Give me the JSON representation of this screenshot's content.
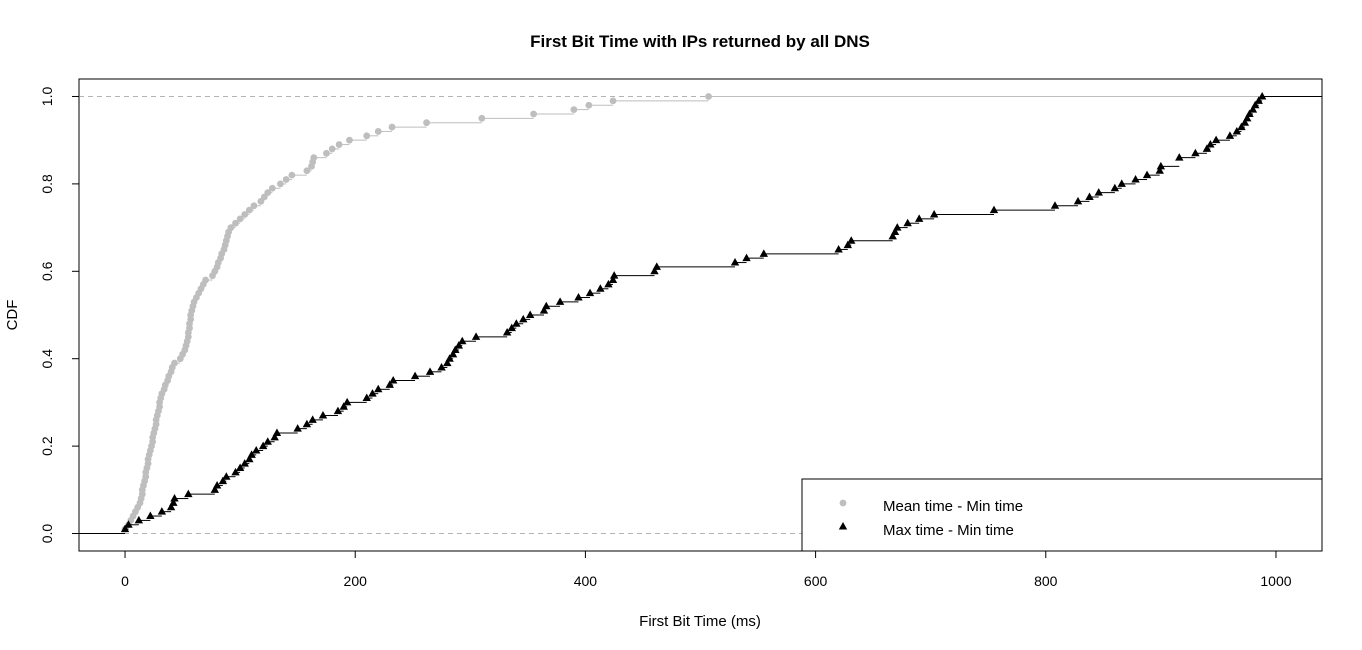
{
  "chart_data": {
    "type": "line",
    "subtype": "step-ecdf",
    "title": "First Bit Time with IPs returned by all DNS",
    "xlabel": "First Bit Time (ms)",
    "ylabel": "CDF",
    "xlim": [
      -40,
      1040
    ],
    "ylim": [
      -0.04,
      1.04
    ],
    "x_ticks": [
      0,
      200,
      400,
      600,
      800,
      1000
    ],
    "y_ticks": [
      0.0,
      0.2,
      0.4,
      0.6,
      0.8,
      1.0
    ],
    "x_tick_labels": [
      "0",
      "200",
      "400",
      "600",
      "800",
      "1000"
    ],
    "y_tick_labels": [
      "0.0",
      "0.2",
      "0.4",
      "0.6",
      "0.8",
      "1.0"
    ],
    "reference_lines_y": [
      0,
      1
    ],
    "legend_position": "bottom-right",
    "series": [
      {
        "name": "Mean time - Min time",
        "color": "#bebebe",
        "marker": "circle",
        "points": [
          [
            0,
            0.01
          ],
          [
            3,
            0.02
          ],
          [
            5,
            0.03
          ],
          [
            7,
            0.04
          ],
          [
            9,
            0.05
          ],
          [
            11,
            0.06
          ],
          [
            13,
            0.07
          ],
          [
            14,
            0.08
          ],
          [
            15,
            0.09
          ],
          [
            15,
            0.1
          ],
          [
            16,
            0.11
          ],
          [
            17,
            0.12
          ],
          [
            18,
            0.13
          ],
          [
            18,
            0.14
          ],
          [
            19,
            0.15
          ],
          [
            20,
            0.16
          ],
          [
            20,
            0.17
          ],
          [
            21,
            0.18
          ],
          [
            22,
            0.19
          ],
          [
            23,
            0.2
          ],
          [
            24,
            0.21
          ],
          [
            24,
            0.22
          ],
          [
            25,
            0.23
          ],
          [
            26,
            0.24
          ],
          [
            27,
            0.25
          ],
          [
            27,
            0.26
          ],
          [
            28,
            0.27
          ],
          [
            29,
            0.28
          ],
          [
            30,
            0.29
          ],
          [
            30,
            0.3
          ],
          [
            31,
            0.31
          ],
          [
            32,
            0.32
          ],
          [
            34,
            0.33
          ],
          [
            35,
            0.34
          ],
          [
            37,
            0.35
          ],
          [
            38,
            0.36
          ],
          [
            40,
            0.37
          ],
          [
            41,
            0.38
          ],
          [
            43,
            0.39
          ],
          [
            48,
            0.4
          ],
          [
            50,
            0.41
          ],
          [
            52,
            0.42
          ],
          [
            53,
            0.43
          ],
          [
            54,
            0.44
          ],
          [
            55,
            0.45
          ],
          [
            55,
            0.46
          ],
          [
            56,
            0.47
          ],
          [
            56,
            0.48
          ],
          [
            57,
            0.49
          ],
          [
            57,
            0.5
          ],
          [
            58,
            0.51
          ],
          [
            59,
            0.52
          ],
          [
            60,
            0.53
          ],
          [
            62,
            0.54
          ],
          [
            64,
            0.55
          ],
          [
            66,
            0.56
          ],
          [
            68,
            0.57
          ],
          [
            70,
            0.58
          ],
          [
            76,
            0.59
          ],
          [
            78,
            0.6
          ],
          [
            80,
            0.61
          ],
          [
            81,
            0.62
          ],
          [
            83,
            0.63
          ],
          [
            84,
            0.64
          ],
          [
            86,
            0.65
          ],
          [
            87,
            0.66
          ],
          [
            88,
            0.67
          ],
          [
            89,
            0.68
          ],
          [
            90,
            0.69
          ],
          [
            92,
            0.7
          ],
          [
            96,
            0.71
          ],
          [
            100,
            0.72
          ],
          [
            104,
            0.73
          ],
          [
            108,
            0.74
          ],
          [
            112,
            0.75
          ],
          [
            118,
            0.76
          ],
          [
            121,
            0.77
          ],
          [
            124,
            0.78
          ],
          [
            128,
            0.79
          ],
          [
            135,
            0.8
          ],
          [
            140,
            0.81
          ],
          [
            145,
            0.82
          ],
          [
            158,
            0.83
          ],
          [
            162,
            0.84
          ],
          [
            163,
            0.85
          ],
          [
            164,
            0.86
          ],
          [
            175,
            0.87
          ],
          [
            180,
            0.88
          ],
          [
            186,
            0.89
          ],
          [
            195,
            0.9
          ],
          [
            210,
            0.91
          ],
          [
            220,
            0.92
          ],
          [
            232,
            0.93
          ],
          [
            262,
            0.94
          ],
          [
            310,
            0.95
          ],
          [
            355,
            0.96
          ],
          [
            390,
            0.97
          ],
          [
            403,
            0.98
          ],
          [
            424,
            0.99
          ],
          [
            507,
            1.0
          ]
        ]
      },
      {
        "name": "Max time - Min time",
        "color": "#000000",
        "marker": "triangle",
        "points": [
          [
            0,
            0.01
          ],
          [
            3,
            0.02
          ],
          [
            12,
            0.03
          ],
          [
            22,
            0.04
          ],
          [
            32,
            0.05
          ],
          [
            40,
            0.06
          ],
          [
            42,
            0.07
          ],
          [
            43,
            0.08
          ],
          [
            55,
            0.09
          ],
          [
            78,
            0.1
          ],
          [
            80,
            0.11
          ],
          [
            85,
            0.12
          ],
          [
            88,
            0.13
          ],
          [
            96,
            0.14
          ],
          [
            100,
            0.15
          ],
          [
            104,
            0.16
          ],
          [
            108,
            0.17
          ],
          [
            110,
            0.18
          ],
          [
            114,
            0.19
          ],
          [
            120,
            0.2
          ],
          [
            124,
            0.21
          ],
          [
            130,
            0.22
          ],
          [
            132,
            0.23
          ],
          [
            150,
            0.24
          ],
          [
            158,
            0.25
          ],
          [
            163,
            0.26
          ],
          [
            172,
            0.27
          ],
          [
            185,
            0.28
          ],
          [
            190,
            0.29
          ],
          [
            193,
            0.3
          ],
          [
            210,
            0.31
          ],
          [
            215,
            0.32
          ],
          [
            220,
            0.33
          ],
          [
            230,
            0.34
          ],
          [
            233,
            0.35
          ],
          [
            252,
            0.36
          ],
          [
            265,
            0.37
          ],
          [
            275,
            0.38
          ],
          [
            280,
            0.39
          ],
          [
            282,
            0.4
          ],
          [
            285,
            0.41
          ],
          [
            287,
            0.42
          ],
          [
            290,
            0.43
          ],
          [
            293,
            0.44
          ],
          [
            305,
            0.45
          ],
          [
            332,
            0.46
          ],
          [
            336,
            0.47
          ],
          [
            340,
            0.48
          ],
          [
            346,
            0.49
          ],
          [
            352,
            0.5
          ],
          [
            364,
            0.51
          ],
          [
            366,
            0.52
          ],
          [
            378,
            0.53
          ],
          [
            394,
            0.54
          ],
          [
            404,
            0.55
          ],
          [
            413,
            0.56
          ],
          [
            420,
            0.57
          ],
          [
            424,
            0.58
          ],
          [
            425,
            0.59
          ],
          [
            460,
            0.6
          ],
          [
            462,
            0.61
          ],
          [
            530,
            0.62
          ],
          [
            540,
            0.63
          ],
          [
            555,
            0.64
          ],
          [
            620,
            0.65
          ],
          [
            628,
            0.66
          ],
          [
            631,
            0.67
          ],
          [
            667,
            0.68
          ],
          [
            669,
            0.69
          ],
          [
            671,
            0.7
          ],
          [
            680,
            0.71
          ],
          [
            690,
            0.72
          ],
          [
            703,
            0.73
          ],
          [
            755,
            0.74
          ],
          [
            808,
            0.75
          ],
          [
            828,
            0.76
          ],
          [
            838,
            0.77
          ],
          [
            846,
            0.78
          ],
          [
            860,
            0.79
          ],
          [
            866,
            0.8
          ],
          [
            878,
            0.81
          ],
          [
            888,
            0.82
          ],
          [
            899,
            0.83
          ],
          [
            900,
            0.84
          ],
          [
            916,
            0.86
          ],
          [
            930,
            0.87
          ],
          [
            940,
            0.88
          ],
          [
            943,
            0.89
          ],
          [
            948,
            0.9
          ],
          [
            960,
            0.91
          ],
          [
            966,
            0.92
          ],
          [
            970,
            0.93
          ],
          [
            973,
            0.94
          ],
          [
            975,
            0.95
          ],
          [
            977,
            0.96
          ],
          [
            980,
            0.97
          ],
          [
            982,
            0.98
          ],
          [
            985,
            0.99
          ],
          [
            988,
            1.0
          ]
        ]
      }
    ]
  }
}
